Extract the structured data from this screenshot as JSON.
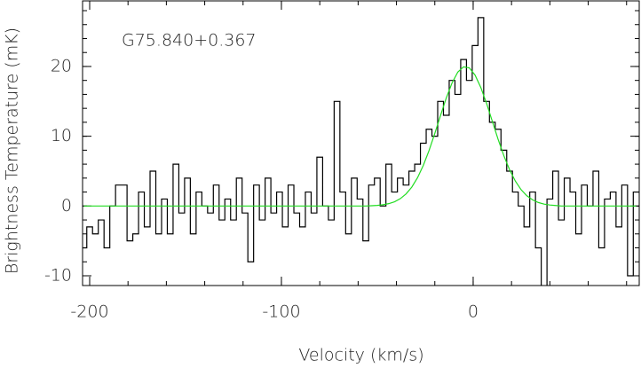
{
  "chart_data": {
    "type": "line",
    "annotation": "G75.840+0.367",
    "x_label": "Velocity (km/s)",
    "y_label": "Brightness Temperature (mK)",
    "xlim": [
      -203.7,
      86.6
    ],
    "ylim": [
      -11.4,
      29.4
    ],
    "xticks": [
      -200,
      -100,
      0
    ],
    "yticks": [
      -10,
      0,
      10,
      20
    ],
    "xminorticks": [
      -200,
      -180,
      -160,
      -140,
      -120,
      -100,
      -80,
      -60,
      -40,
      -20,
      0,
      20,
      40,
      60,
      80
    ],
    "yminorticks": [
      -10,
      -8,
      -6,
      -4,
      -2,
      0,
      2,
      4,
      6,
      8,
      10,
      12,
      14,
      16,
      18,
      20,
      22,
      24,
      26,
      28
    ],
    "x": [
      -203,
      -200,
      -197,
      -194,
      -191,
      -188,
      -185,
      -182,
      -179,
      -176,
      -173,
      -170,
      -167,
      -164,
      -161,
      -158,
      -155,
      -152,
      -149,
      -146,
      -143,
      -140,
      -137,
      -134,
      -131,
      -128,
      -125,
      -122,
      -119,
      -116,
      -113,
      -110,
      -107,
      -104,
      -101,
      -98,
      -95,
      -92,
      -89,
      -86,
      -83,
      -80,
      -77,
      -74,
      -71,
      -68,
      -65,
      -62,
      -59,
      -56,
      -53,
      -50,
      -47,
      -44,
      -41,
      -38,
      -35,
      -32,
      -29,
      -26,
      -23,
      -20,
      -17,
      -14,
      -11,
      -8,
      -5,
      -2,
      1,
      4,
      7,
      10,
      13,
      16,
      19,
      22,
      25,
      28,
      31,
      34,
      37,
      40,
      43,
      46,
      49,
      52,
      55,
      58,
      61,
      64,
      67,
      70,
      73,
      76,
      79,
      82,
      85
    ],
    "series": [
      {
        "color": "#000000",
        "drawstyle": "steps-mid",
        "values": [
          -6,
          -3,
          -4,
          -2,
          -6,
          0,
          3,
          3,
          -5,
          -4,
          2,
          -3,
          5,
          -4,
          1,
          -4,
          6,
          -1,
          4,
          -4,
          2,
          0,
          -1,
          3,
          -2,
          1,
          -2,
          4,
          -1,
          -8,
          3,
          -2,
          4,
          -1,
          2,
          -3,
          3,
          -1,
          -3,
          2,
          -1,
          7,
          0,
          -2,
          15,
          2,
          -4,
          4,
          1,
          -5,
          3,
          4,
          0,
          6,
          2,
          4,
          3,
          5,
          6,
          9,
          11,
          10,
          15,
          13,
          18,
          16,
          21,
          18,
          23,
          27,
          15,
          12,
          11,
          8,
          5,
          2,
          0,
          -3,
          2,
          -6,
          -13,
          1,
          5,
          -2,
          4,
          2,
          -4,
          3,
          0,
          5,
          -6,
          1,
          2,
          -3,
          3,
          -10,
          2
        ]
      },
      {
        "color": "#22dd22",
        "drawstyle": "default",
        "values": [
          0,
          0,
          0,
          0,
          0,
          0,
          0,
          0,
          0,
          0,
          0,
          0,
          0,
          0,
          0,
          0,
          0,
          0,
          0,
          0,
          0,
          0,
          0,
          0,
          0,
          0,
          0,
          0,
          0,
          0,
          0,
          0,
          0,
          0,
          0,
          0,
          0,
          0,
          0,
          0,
          0,
          0,
          0,
          0,
          0,
          0,
          0,
          0,
          0,
          0,
          0.04,
          0.09,
          0.18,
          0.34,
          0.61,
          1.05,
          1.73,
          2.71,
          4.06,
          5.82,
          7.96,
          10.41,
          12.99,
          15.5,
          17.65,
          19.2,
          19.95,
          19.8,
          18.76,
          16.98,
          14.69,
          12.13,
          9.57,
          7.21,
          5.19,
          3.57,
          2.34,
          1.47,
          0.88,
          0.5,
          0.27,
          0.14,
          0.07,
          0,
          0,
          0,
          0,
          0,
          0,
          0,
          0,
          0,
          0,
          0,
          0,
          0,
          0
        ]
      }
    ]
  }
}
